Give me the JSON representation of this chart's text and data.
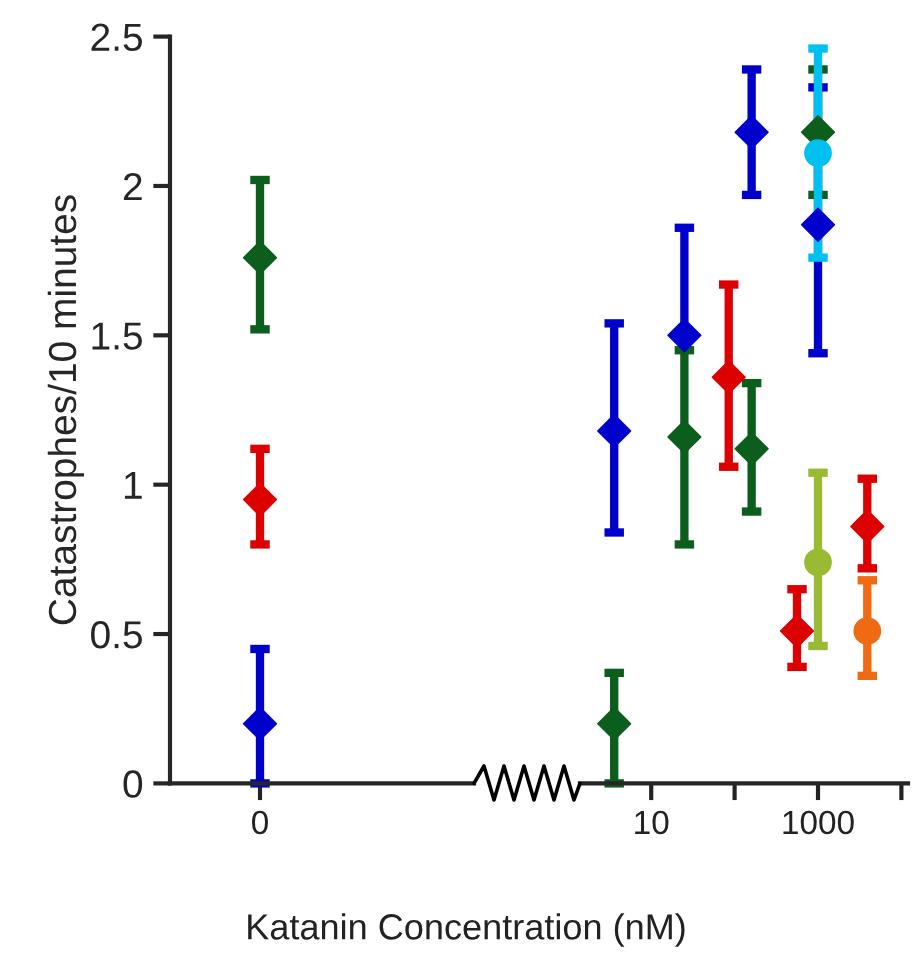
{
  "chart_data": [
    {
      "type": "scatter",
      "ylabel": "Catastrophes/10 minutes",
      "categories": [
        "0"
      ],
      "ylim": [
        0,
        2.5
      ],
      "yticks": [
        0,
        0.5,
        1,
        1.5,
        2,
        2.5
      ],
      "grid": false,
      "legend": false,
      "series": [
        {
          "color": "#0b5e1c",
          "marker": "diamond",
          "values": [
            1.76
          ],
          "errors": [
            [
              1.52,
              2.02
            ]
          ]
        },
        {
          "color": "#dd0000",
          "marker": "diamond",
          "values": [
            0.95
          ],
          "errors": [
            [
              0.8,
              1.12
            ]
          ]
        },
        {
          "color": "#0000cc",
          "marker": "diamond",
          "values": [
            0.2
          ],
          "errors": [
            [
              0,
              0.45
            ]
          ]
        }
      ]
    },
    {
      "type": "scatter",
      "xlabel": "Katanin Concentration (nM)",
      "log": "x",
      "xlim": [
        1.4,
        12000
      ],
      "xticks": [
        10,
        {
          "value": 100,
          "label": null
        },
        1000,
        {
          "value": 10000,
          "label": null
        }
      ],
      "ylim": [
        0,
        2.5
      ],
      "yticks": [
        0,
        0.5,
        1,
        1.5,
        2,
        2.5
      ],
      "tick_labels": "x",
      "grid": false,
      "legend": false,
      "series": [
        {
          "color": "#0000cc",
          "marker": "diamond",
          "x": [
            3.6,
            25,
            160,
            1000
          ],
          "values": [
            1.18,
            1.5,
            2.18,
            1.87
          ],
          "errors": [
            [
              0.84,
              1.54
            ],
            [
              1.5,
              1.86
            ],
            [
              1.97,
              2.39
            ],
            [
              1.44,
              2.33
            ]
          ]
        },
        {
          "color": "#0b5e1c",
          "marker": "diamond",
          "x": [
            3.6,
            25,
            160,
            1000
          ],
          "values": [
            0.2,
            1.16,
            1.12,
            2.18
          ],
          "errors": [
            [
              0,
              0.37
            ],
            [
              0.8,
              1.45
            ],
            [
              0.91,
              1.34
            ],
            [
              1.97,
              2.39
            ]
          ]
        },
        {
          "color": "#dd0000",
          "marker": "diamond",
          "x": [
            85,
            560,
            3900
          ],
          "values": [
            1.36,
            0.51,
            0.86
          ],
          "errors": [
            [
              1.06,
              1.67
            ],
            [
              0.39,
              0.65
            ],
            [
              0.72,
              1.02
            ]
          ]
        },
        {
          "color": "#00c0f0",
          "marker": "circle",
          "x": [
            1000
          ],
          "values": [
            2.11
          ],
          "errors": [
            [
              1.76,
              2.46
            ]
          ]
        },
        {
          "color": "#99bb33",
          "marker": "circle",
          "x": [
            1000
          ],
          "values": [
            0.74
          ],
          "errors": [
            [
              0.46,
              1.04
            ]
          ]
        },
        {
          "color": "#f06a14",
          "marker": "circle",
          "x": [
            3900
          ],
          "values": [
            0.51
          ],
          "errors": [
            [
              0.36,
              0.68
            ]
          ]
        }
      ]
    }
  ]
}
